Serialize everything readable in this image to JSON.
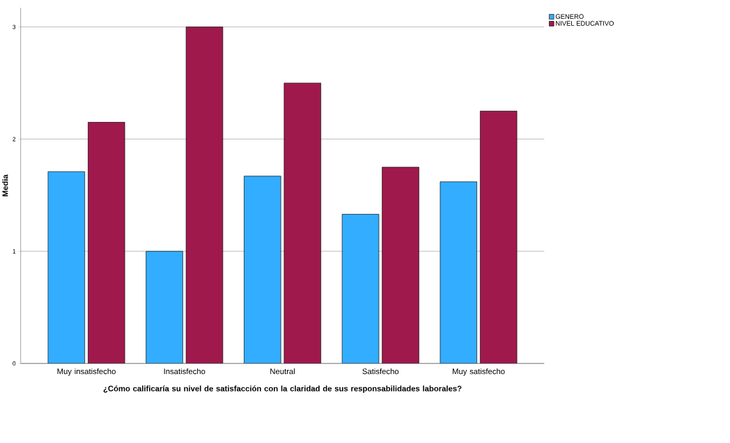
{
  "chart_data": {
    "type": "bar",
    "categories": [
      "Muy insatisfecho",
      "Insatisfecho",
      "Neutral",
      "Satisfecho",
      "Muy satisfecho"
    ],
    "series": [
      {
        "name": "GENERO",
        "color": "#33adff",
        "values": [
          1.71,
          1.0,
          1.67,
          1.33,
          1.62
        ]
      },
      {
        "name": "NIVEL EDUCATIVO",
        "color": "#a0194c",
        "values": [
          2.15,
          3.0,
          2.5,
          1.75,
          2.25
        ]
      }
    ],
    "ylabel": "Media",
    "xlabel": "¿Cómo calificaría su nivel de satisfacción con la claridad de sus responsabilidades laborales?",
    "ylim": [
      0,
      3.17
    ],
    "yticks": [
      0,
      1,
      2,
      3
    ],
    "grid": "y",
    "legend": "top right"
  }
}
